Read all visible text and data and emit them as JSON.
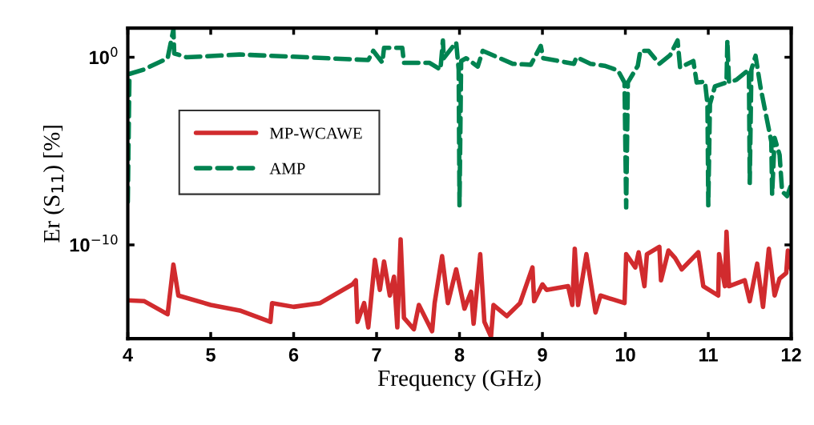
{
  "chart_data": {
    "type": "line",
    "xlabel": "Frequency (GHz)",
    "ylabel": "Er (S$_{11}$) [%]",
    "log": "y",
    "xlim": [
      4,
      12
    ],
    "xticks": [
      4,
      5,
      6,
      7,
      8,
      9,
      10,
      11,
      12
    ],
    "ylim": [
      1e-15,
      36
    ],
    "yticks": [
      {
        "value": 1,
        "label": "10$^{0}$"
      },
      {
        "value": 1e-10,
        "label": "10$^{−10}$"
      }
    ],
    "grid": false,
    "legend": "center left",
    "series": [
      {
        "name": "MP-WCAWE",
        "color": "#d12b2e",
        "line_style": "solid",
        "x": [
          4.0,
          4.2,
          4.48,
          4.55,
          4.61,
          5.0,
          5.35,
          5.72,
          5.74,
          6.0,
          6.32,
          6.71,
          6.75,
          6.77,
          6.85,
          6.9,
          6.98,
          7.04,
          7.09,
          7.16,
          7.21,
          7.25,
          7.29,
          7.33,
          7.45,
          7.51,
          7.67,
          7.7,
          7.79,
          7.86,
          7.96,
          8.06,
          8.14,
          8.17,
          8.25,
          8.3,
          8.38,
          8.41,
          8.57,
          8.73,
          8.88,
          8.9,
          9.0,
          9.05,
          9.31,
          9.36,
          9.39,
          9.43,
          9.53,
          9.64,
          9.7,
          9.99,
          10.01,
          10.12,
          10.16,
          10.23,
          10.26,
          10.41,
          10.43,
          10.52,
          10.6,
          10.68,
          10.88,
          10.94,
          11.12,
          11.13,
          11.2,
          11.22,
          11.25,
          11.44,
          11.5,
          11.59,
          11.66,
          11.73,
          11.8,
          11.86,
          11.94,
          11.96,
          12.0
        ],
        "values": [
          1.1e-13,
          1e-13,
          2e-14,
          8.9e-12,
          2e-13,
          6.3e-14,
          3.2e-14,
          7.9e-15,
          7.9e-14,
          5e-14,
          7.9e-14,
          7.9e-13,
          1.3e-12,
          7.9e-15,
          7.9e-14,
          4e-15,
          1.6e-11,
          4e-13,
          1.3e-11,
          2e-13,
          2e-12,
          4e-15,
          2e-10,
          1.3e-14,
          3.2e-15,
          6.3e-14,
          2.5e-15,
          7.9e-14,
          2.5e-11,
          7.9e-14,
          5e-12,
          4e-14,
          3.2e-13,
          6.3e-15,
          3.2e-11,
          7.9e-15,
          1.3e-15,
          6.3e-14,
          1.6e-14,
          7.9e-14,
          6.3e-12,
          1e-13,
          7.9e-13,
          4e-13,
          6.3e-13,
          6.3e-14,
          6.3e-11,
          6.3e-14,
          3.2e-11,
          2.5e-14,
          2e-13,
          7.9e-14,
          3.2e-11,
          6.3e-12,
          4e-11,
          6.3e-13,
          3.2e-11,
          7.9e-11,
          1.3e-12,
          5e-11,
          2e-11,
          5e-12,
          4e-11,
          6.3e-13,
          2e-13,
          3.2e-11,
          6.3e-13,
          5e-10,
          6.3e-13,
          1.3e-12,
          1e-13,
          1e-11,
          5e-14,
          6.3e-11,
          2e-13,
          1.6e-12,
          3.2e-12,
          5e-11,
          5e-12
        ]
      },
      {
        "name": "AMP",
        "color": "#008351",
        "line_style": "dashed",
        "x": [
          4.0,
          4.02,
          4.19,
          4.48,
          4.55,
          4.56,
          4.71,
          5.35,
          6.15,
          6.9,
          6.96,
          7.07,
          7.09,
          7.31,
          7.33,
          7.43,
          7.64,
          7.77,
          7.8,
          7.81,
          7.96,
          7.99,
          8.0,
          8.02,
          8.08,
          8.22,
          8.28,
          8.64,
          8.86,
          8.98,
          9.01,
          9.38,
          9.41,
          9.58,
          9.75,
          9.91,
          9.99,
          10.01,
          10.03,
          10.15,
          10.18,
          10.28,
          10.41,
          10.54,
          10.63,
          10.66,
          10.82,
          10.86,
          10.96,
          10.99,
          11.0,
          11.02,
          11.08,
          11.22,
          11.23,
          11.25,
          11.34,
          11.49,
          11.5,
          11.52,
          11.57,
          11.63,
          11.76,
          11.77,
          11.8,
          11.86,
          11.89,
          11.95,
          12.0
        ],
        "values": [
          2e-08,
          0.13,
          0.22,
          0.87,
          30,
          1.6,
          1.0,
          1.4,
          1.0,
          0.71,
          2.2,
          0.52,
          3.2,
          3.2,
          0.5,
          0.5,
          0.5,
          0.22,
          7.9,
          0.89,
          6.3,
          0.22,
          1.3e-08,
          0.63,
          0.89,
          0.32,
          2.2,
          0.45,
          0.4,
          4,
          0.89,
          0.45,
          1,
          0.45,
          0.35,
          0.2,
          0.045,
          1e-08,
          0.045,
          0.35,
          2.2,
          2.2,
          0.45,
          1.3,
          7.9,
          0.28,
          0.63,
          0.045,
          0.05,
          0.0032,
          1.3e-08,
          0.0032,
          0.028,
          0.045,
          7.9,
          0.045,
          0.063,
          0.22,
          2e-07,
          0.22,
          1.2,
          0.025,
          3.2e-05,
          5e-08,
          5e-05,
          6.3e-06,
          7.1e-08,
          4e-08,
          1.6e-07
        ]
      }
    ]
  }
}
